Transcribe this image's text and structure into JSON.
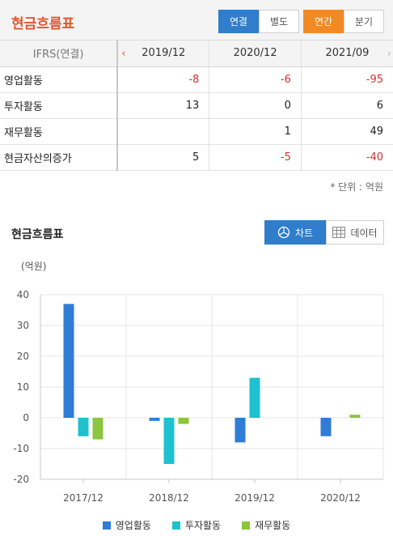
{
  "header": {
    "title": "현금흐름표",
    "seg_consolidation": [
      {
        "label": "연결",
        "active": true
      },
      {
        "label": "별도",
        "active": false
      }
    ],
    "seg_period": [
      {
        "label": "연간",
        "active": true
      },
      {
        "label": "분기",
        "active": false
      }
    ]
  },
  "table": {
    "column_header": "IFRS(연결)",
    "years": [
      "2019/12",
      "2020/12",
      "2021/09"
    ],
    "rows": [
      {
        "label": "영업활동",
        "values": [
          "-8",
          "-6",
          "-95"
        ]
      },
      {
        "label": "투자활동",
        "values": [
          "13",
          "0",
          "6"
        ]
      },
      {
        "label": "재무활동",
        "values": [
          "",
          "1",
          "49"
        ]
      },
      {
        "label": "현금자산의증가",
        "values": [
          "5",
          "-5",
          "-40"
        ]
      }
    ],
    "unit_note": "* 단위 : 억원"
  },
  "chart_section": {
    "title": "현금흐름표",
    "chart_button": "차트",
    "data_button": "데이터",
    "unit_label": "(억원)"
  },
  "colors": {
    "accent_orange": "#e2562e",
    "active_blue": "#2f7dcb",
    "negative_red": "#e02d2d",
    "series_operating": "#2f7dd6",
    "series_investing": "#1ec1d0",
    "series_financing": "#8cc53e"
  },
  "chart_data": {
    "type": "bar",
    "categories": [
      "2017/12",
      "2018/12",
      "2019/12",
      "2020/12"
    ],
    "series": [
      {
        "name": "영업활동",
        "values": [
          37,
          -1,
          -8,
          -6
        ]
      },
      {
        "name": "투자활동",
        "values": [
          -6,
          -15,
          13,
          0
        ]
      },
      {
        "name": "재무활동",
        "values": [
          -7,
          -2,
          0,
          1
        ]
      }
    ],
    "yticks": [
      40,
      30,
      20,
      10,
      0,
      -10,
      -20
    ],
    "ylim": [
      -20,
      40
    ],
    "grid": true,
    "legend": "bottom"
  }
}
